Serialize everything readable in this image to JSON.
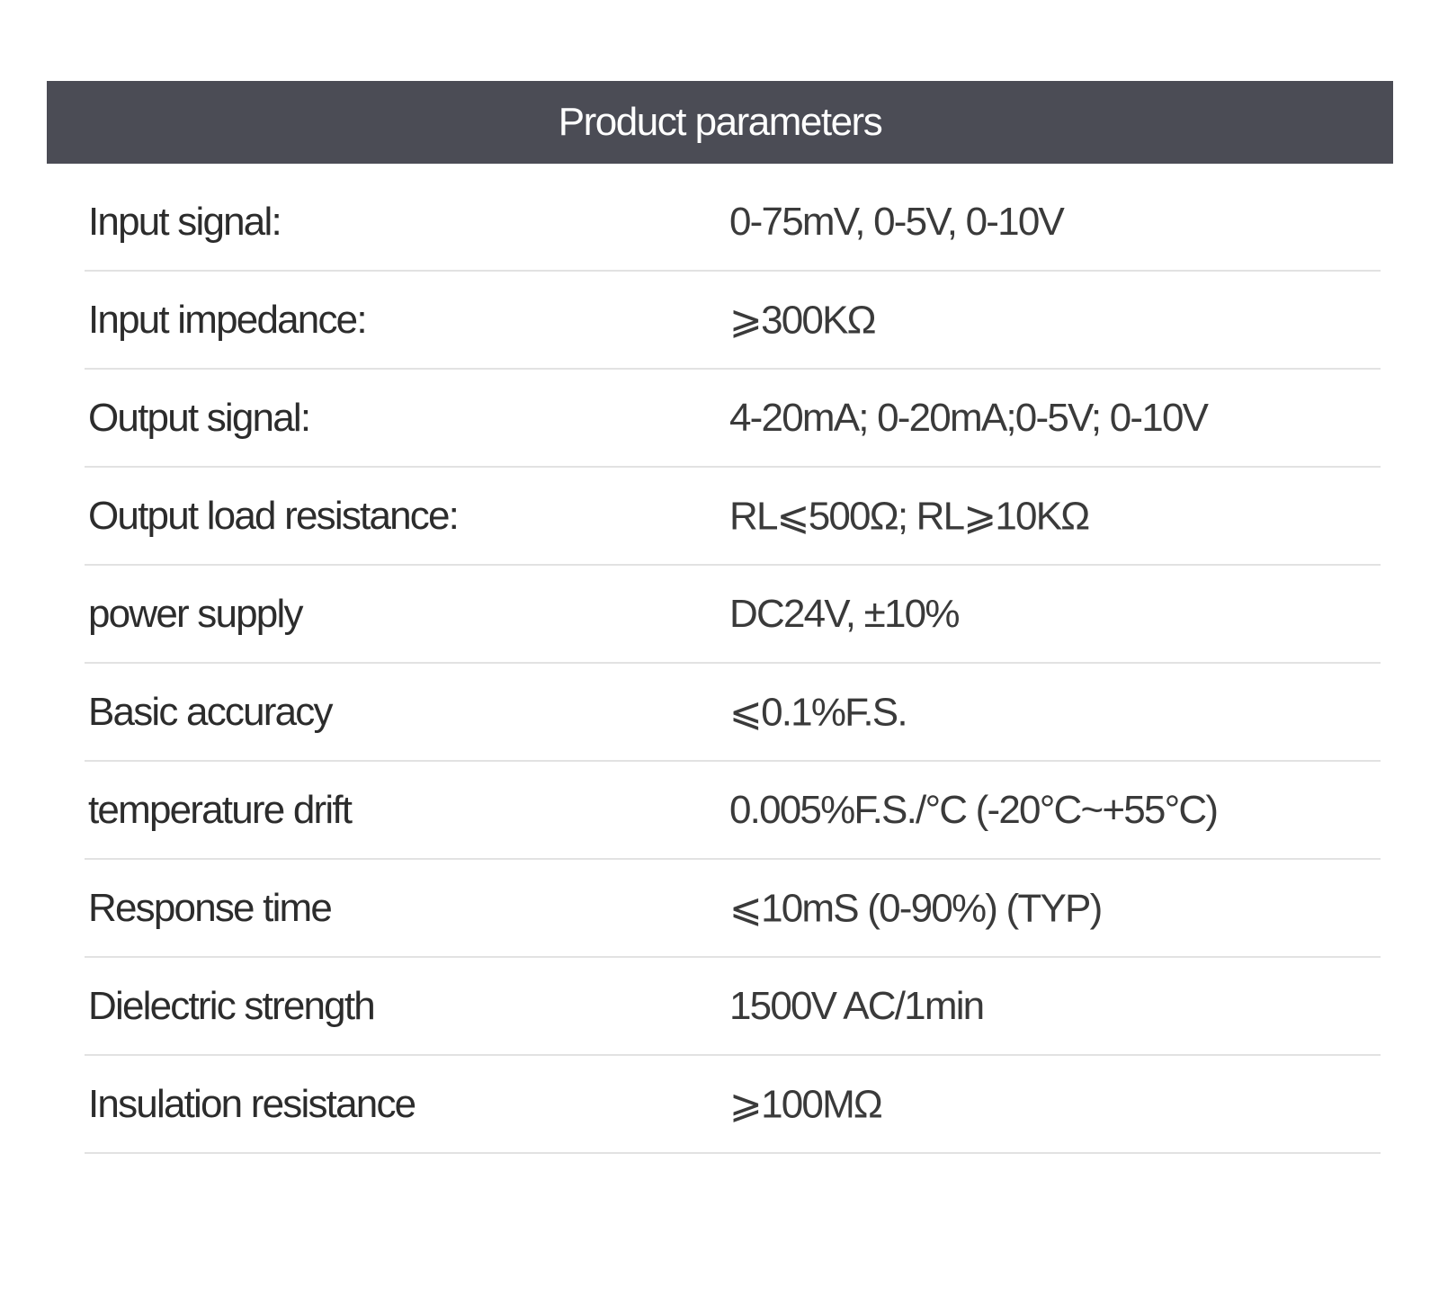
{
  "header": {
    "title": "Product parameters"
  },
  "table": {
    "rows": [
      [
        "Input signal:",
        "0-75mV, 0-5V, 0-10V"
      ],
      [
        "Input impedance:",
        "⩾300KΩ"
      ],
      [
        "Output signal:",
        "4-20mA; 0-20mA;0-5V; 0-10V"
      ],
      [
        "Output load resistance:",
        "RL⩽500Ω; RL⩾10KΩ"
      ],
      [
        "power supply",
        "DC24V, ±10%"
      ],
      [
        "Basic accuracy",
        "⩽0.1%F.S."
      ],
      [
        "temperature drift",
        "0.005%F.S./°C (-20°C~+55°C)"
      ],
      [
        "Response time",
        "⩽10mS (0-90%) (TYP)"
      ],
      [
        "Dielectric strength",
        "1500V AC/1min"
      ],
      [
        "Insulation resistance",
        "⩾100MΩ"
      ]
    ]
  }
}
